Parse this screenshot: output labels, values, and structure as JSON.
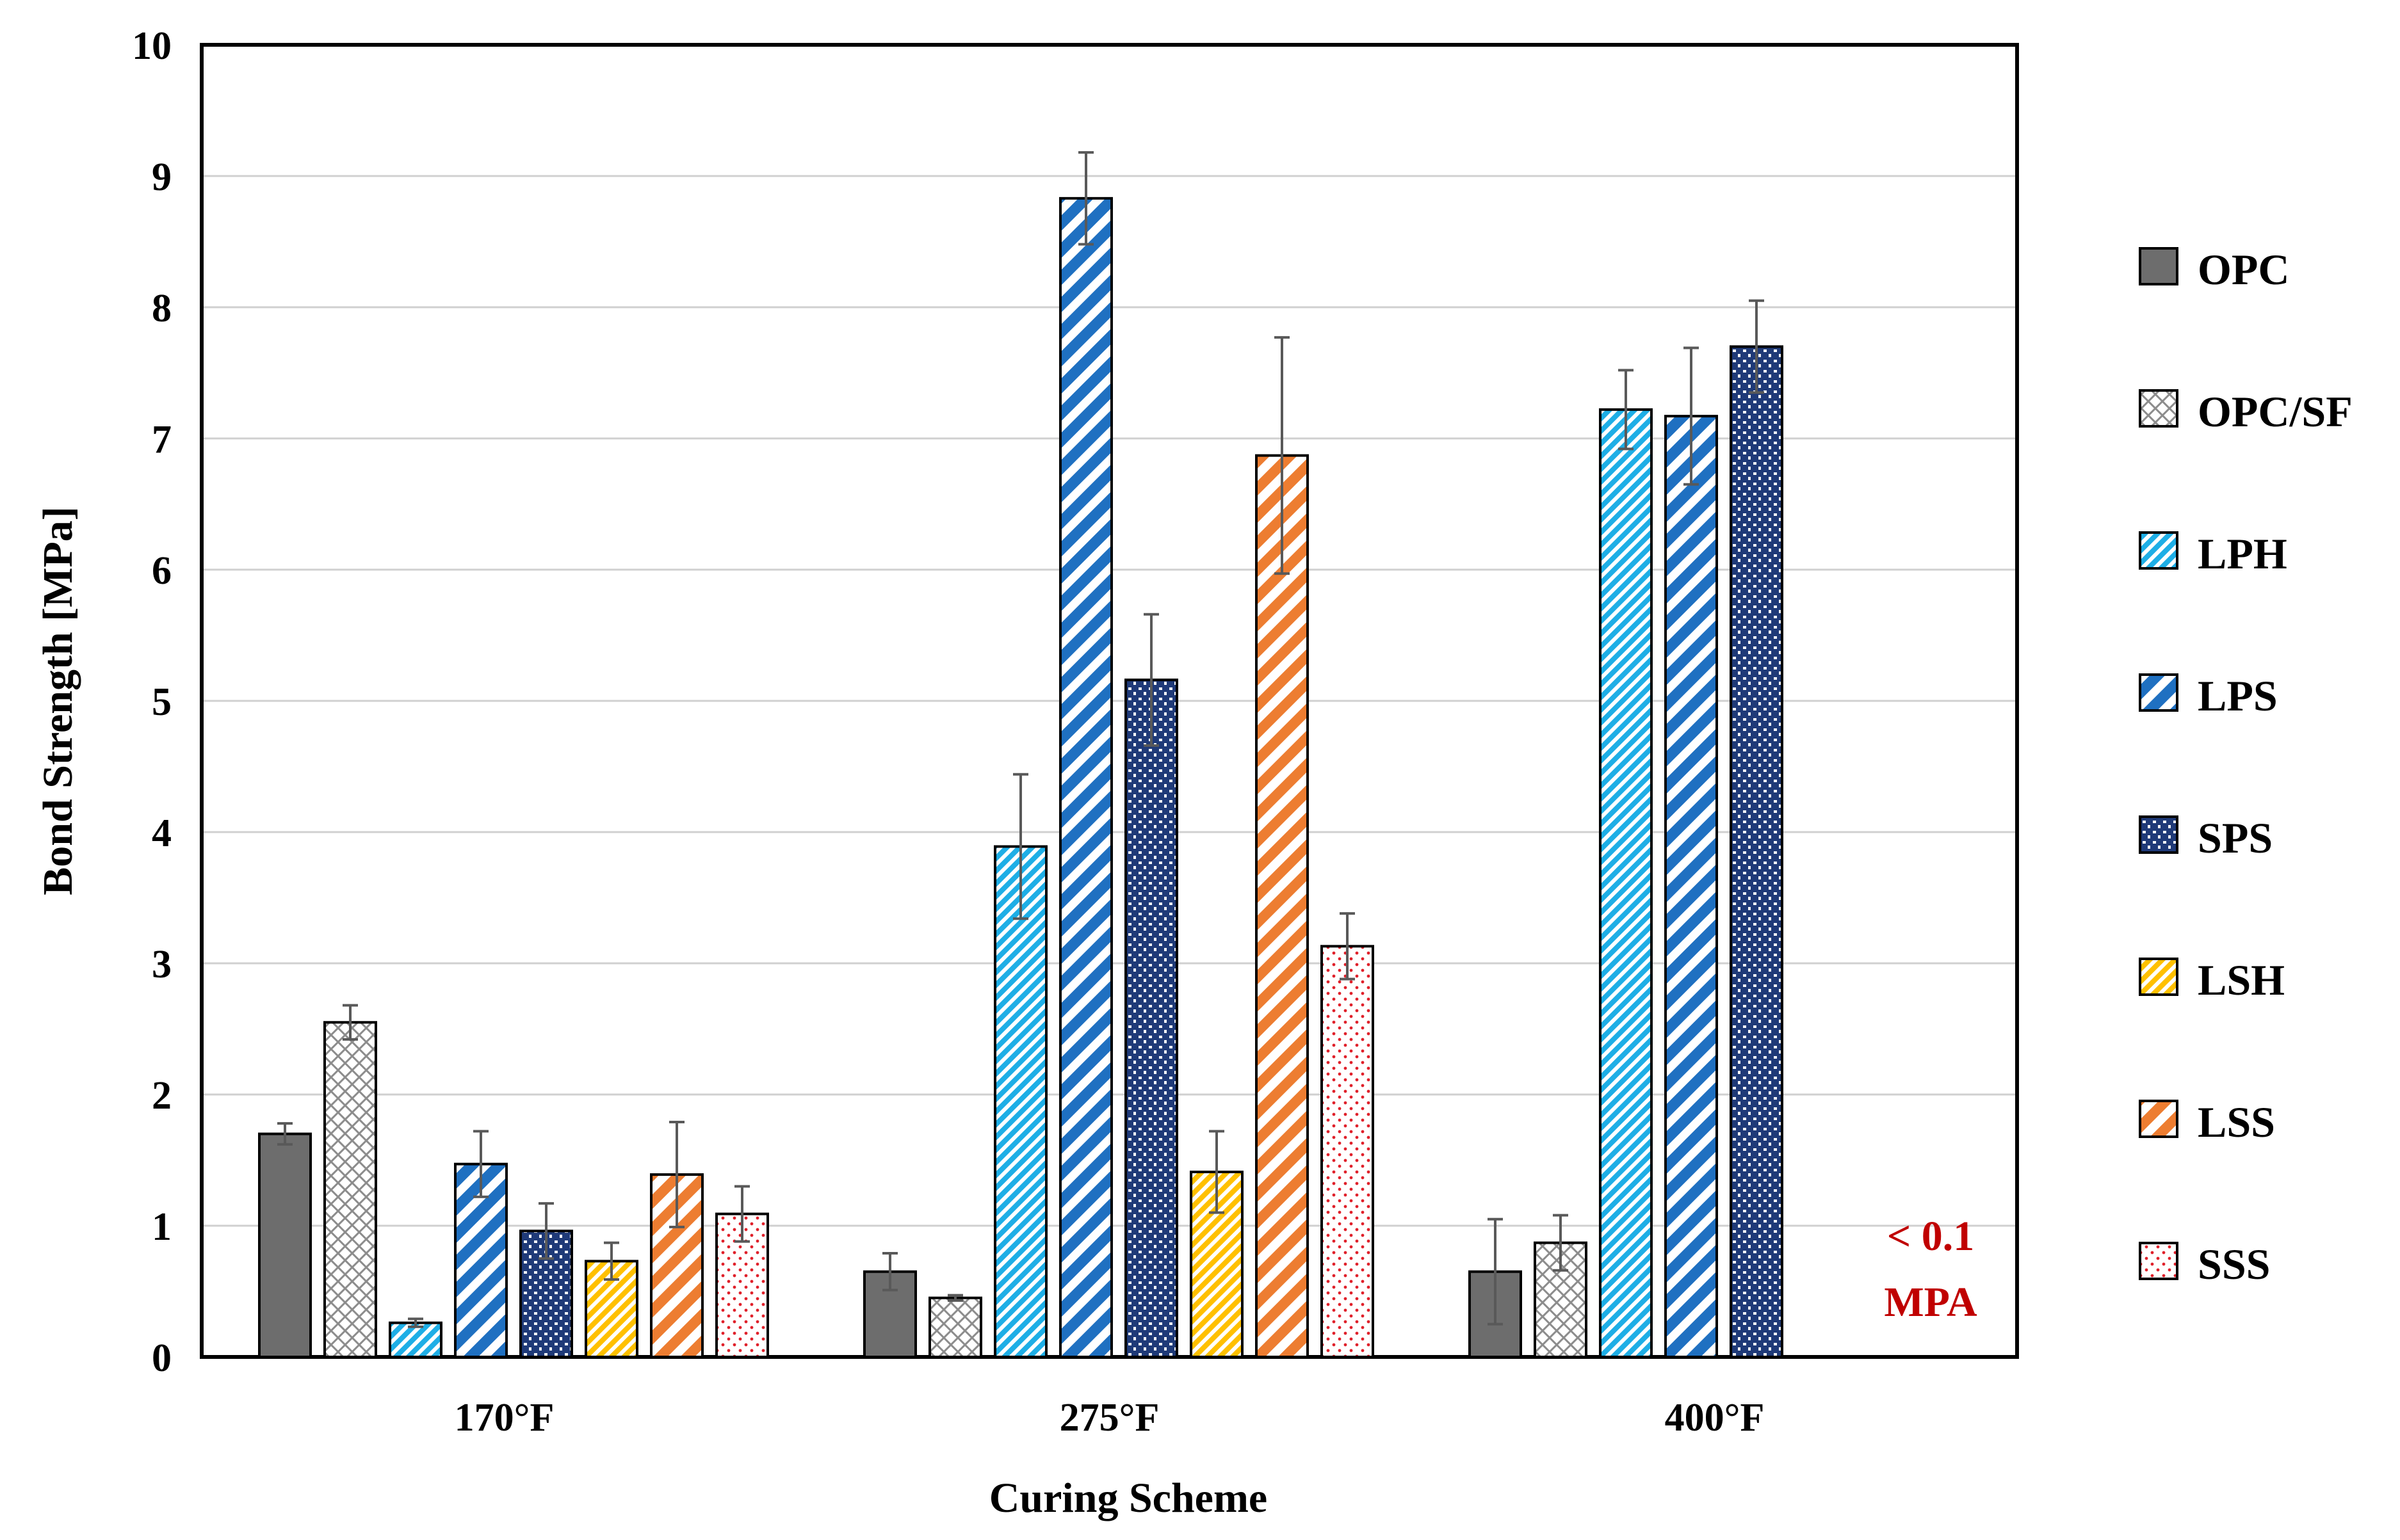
{
  "chart_data": {
    "type": "bar",
    "title": "",
    "xlabel": "Curing Scheme",
    "ylabel": "Bond Strength [MPa]",
    "ylim": [
      0,
      10
    ],
    "yticks": [
      "0",
      "1",
      "2",
      "3",
      "4",
      "5",
      "6",
      "7",
      "8",
      "9",
      "10"
    ],
    "grid": true,
    "legend_position": "right",
    "categories": [
      "170°F",
      "275°F",
      "400°F"
    ],
    "series": [
      {
        "name": "OPC",
        "color": "#6d6d6d",
        "pattern": "solid",
        "values": [
          1.7,
          0.65,
          0.65
        ],
        "errors": [
          0.08,
          0.14,
          0.4
        ]
      },
      {
        "name": "OPC/SF",
        "color": "#8c8c8c",
        "pattern": "crosshatch",
        "values": [
          2.55,
          0.45,
          0.87
        ],
        "errors": [
          0.13,
          0.02,
          0.21
        ]
      },
      {
        "name": "LPH",
        "color": "#1eaee6",
        "pattern": "fine-diag",
        "values": [
          0.26,
          3.89,
          7.22
        ],
        "errors": [
          0.03,
          0.55,
          0.3
        ]
      },
      {
        "name": "LPS",
        "color": "#1f70c1",
        "pattern": "wide-diag",
        "values": [
          1.47,
          8.83,
          7.17
        ],
        "errors": [
          0.25,
          0.35,
          0.52
        ]
      },
      {
        "name": "SPS",
        "color": "#1f3a78",
        "pattern": "dots",
        "values": [
          0.96,
          5.16,
          7.7
        ],
        "errors": [
          0.21,
          0.5,
          0.35
        ]
      },
      {
        "name": "LSH",
        "color": "#ffc000",
        "pattern": "fine-diag",
        "values": [
          0.73,
          1.41,
          null
        ],
        "errors": [
          0.14,
          0.31,
          null
        ]
      },
      {
        "name": "LSS",
        "color": "#ed7d31",
        "pattern": "wide-diag",
        "values": [
          1.39,
          6.87,
          null
        ],
        "errors": [
          0.4,
          0.9,
          null
        ]
      },
      {
        "name": "SSS",
        "color": "#e0202a",
        "pattern": "sparse-dots",
        "values": [
          1.09,
          3.13,
          null
        ],
        "errors": [
          0.21,
          0.25,
          null
        ]
      }
    ],
    "annotations": [
      {
        "text": "< 0.1",
        "category": "400°F"
      },
      {
        "text": "MPA",
        "category": "400°F"
      }
    ]
  }
}
